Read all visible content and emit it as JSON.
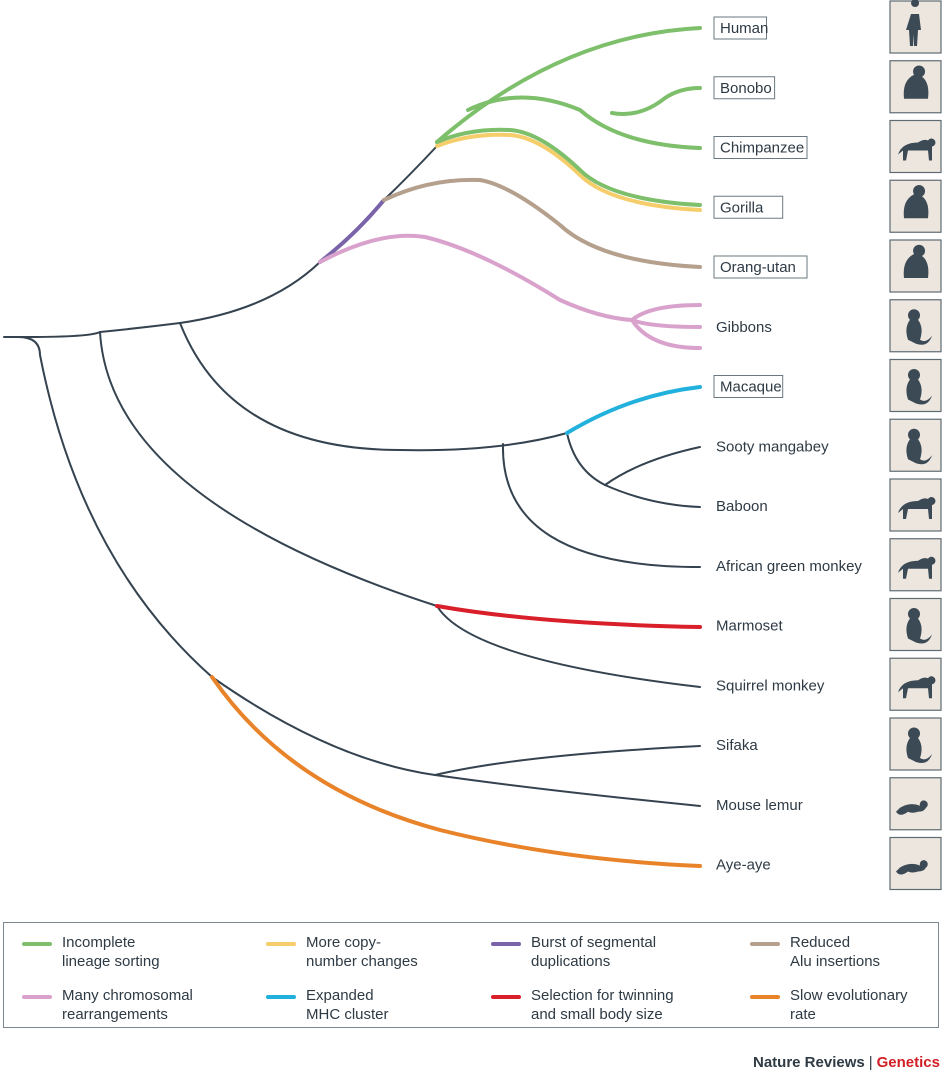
{
  "taxa": [
    {
      "name": "Human",
      "boxed": true,
      "icon": "human-silhouette-icon"
    },
    {
      "name": "Bonobo",
      "boxed": true,
      "icon": "bonobo-silhouette-icon"
    },
    {
      "name": "Chimpanzee",
      "boxed": true,
      "icon": "chimpanzee-silhouette-icon"
    },
    {
      "name": "Gorilla",
      "boxed": true,
      "icon": "gorilla-silhouette-icon"
    },
    {
      "name": "Orang-utan",
      "boxed": true,
      "icon": "orang-utan-silhouette-icon"
    },
    {
      "name": "Gibbons",
      "boxed": false,
      "icon": "gibbon-silhouette-icon"
    },
    {
      "name": "Macaque",
      "boxed": true,
      "icon": "macaque-silhouette-icon"
    },
    {
      "name": "Sooty mangabey",
      "boxed": false,
      "icon": "sooty-mangabey-silhouette-icon"
    },
    {
      "name": "Baboon",
      "boxed": false,
      "icon": "baboon-silhouette-icon"
    },
    {
      "name": "African green monkey",
      "boxed": false,
      "icon": "african-green-monkey-silhouette-icon"
    },
    {
      "name": "Marmoset",
      "boxed": false,
      "icon": "marmoset-silhouette-icon"
    },
    {
      "name": "Squirrel monkey",
      "boxed": false,
      "icon": "squirrel-monkey-silhouette-icon"
    },
    {
      "name": "Sifaka",
      "boxed": false,
      "icon": "sifaka-silhouette-icon"
    },
    {
      "name": "Mouse lemur",
      "boxed": false,
      "icon": "mouse-lemur-silhouette-icon"
    },
    {
      "name": "Aye-aye",
      "boxed": false,
      "icon": "aye-aye-silhouette-icon"
    }
  ],
  "legend": [
    {
      "line1": "Incomplete",
      "line2": "lineage sorting",
      "color": "#7dbf6a"
    },
    {
      "line1": "More copy-",
      "line2": "number changes",
      "color": "#f6cd6b"
    },
    {
      "line1": "Burst of segmental",
      "line2": "duplications",
      "color": "#7a63a8"
    },
    {
      "line1": "Reduced",
      "line2": "Alu insertions",
      "color": "#b4a08c"
    },
    {
      "line1": "Many chromosomal",
      "line2": "rearrangements",
      "color": "#d9a2cc"
    },
    {
      "line1": "Expanded",
      "line2": "MHC cluster",
      "color": "#22b1dc"
    },
    {
      "line1": "Selection for twinning",
      "line2": "and small body size",
      "color": "#d91f2a"
    },
    {
      "line1": "Slow evolutionary",
      "line2": "rate",
      "color": "#e8832a"
    }
  ],
  "colors": {
    "branch": "#34434f"
  },
  "credit": {
    "journal": "Nature Reviews",
    "section": "Genetics"
  }
}
